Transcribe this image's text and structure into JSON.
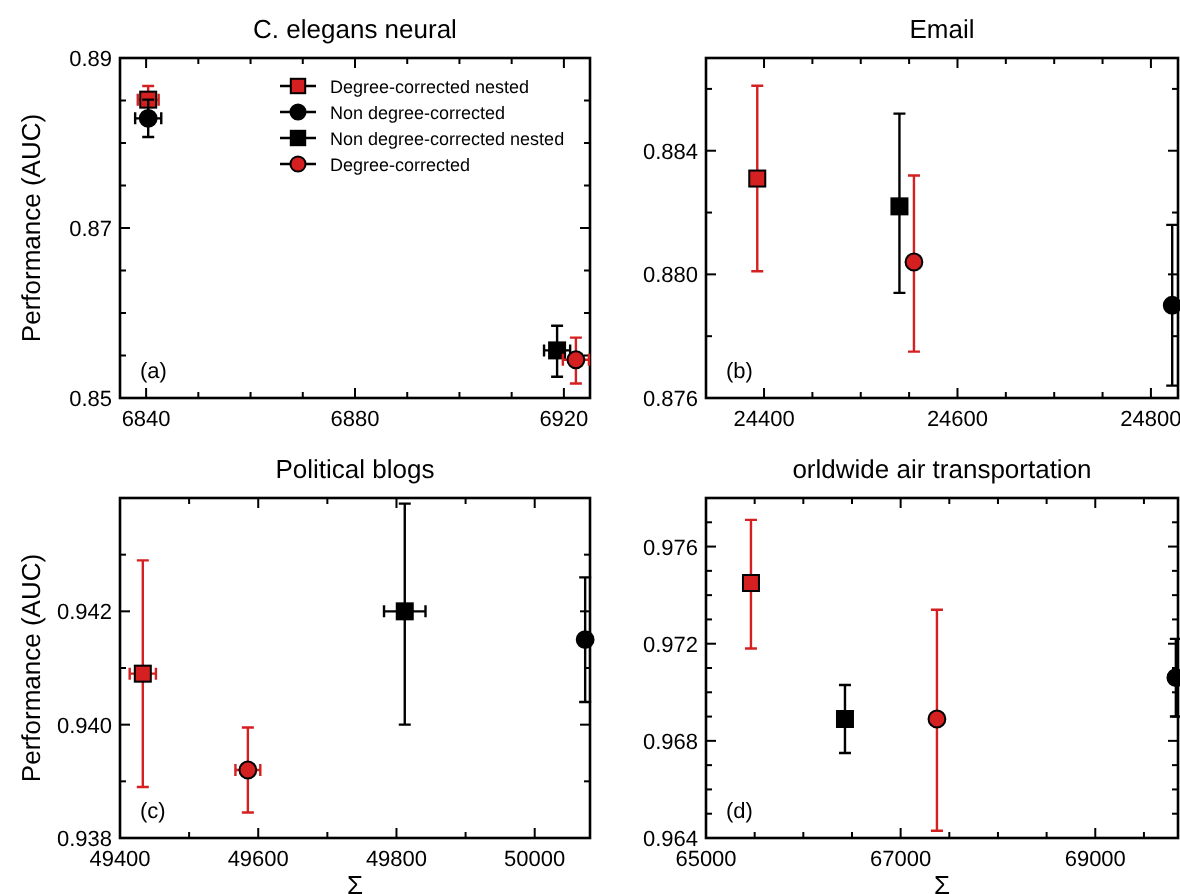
{
  "chart_data": [
    {
      "type": "scatter",
      "title": "C. elegans neural",
      "ylabel": "Performance (AUC)",
      "annotations": [
        "(a)"
      ],
      "legend": "top right",
      "xlim": [
        6835,
        6925
      ],
      "ylim": [
        0.85,
        0.89
      ],
      "xticks": [
        6840,
        {
          "value": 6850,
          "label": null
        },
        {
          "value": 6860,
          "label": null
        },
        {
          "value": 6870,
          "label": null
        },
        6880,
        {
          "value": 6890,
          "label": null
        },
        {
          "value": 6900,
          "label": null
        },
        {
          "value": 6910,
          "label": null
        },
        6920
      ],
      "yticks": [
        0.85,
        {
          "value": 0.855,
          "label": null
        },
        {
          "value": 0.86,
          "label": null
        },
        {
          "value": 0.865,
          "label": null
        },
        0.87,
        {
          "value": 0.875,
          "label": null
        },
        {
          "value": 0.88,
          "label": null
        },
        {
          "value": 0.885,
          "label": null
        },
        0.89
      ],
      "series": [
        {
          "name": "Degree-corrected nested",
          "color": "#d42020",
          "marker": "square",
          "x": [
            6840.4
          ],
          "values": [
            0.8851
          ],
          "errors": [
            [
              0.8835,
              0.8867
            ]
          ],
          "xerrors": [
            2
          ]
        },
        {
          "name": "Non degree-corrected",
          "color": "#000000",
          "marker": "circle",
          "x": [
            6840.4
          ],
          "values": [
            0.8829
          ],
          "errors": [
            [
              0.8807,
              0.8851
            ]
          ],
          "xerrors": [
            2.5
          ]
        },
        {
          "name": "Non degree-corrected nested",
          "color": "#000000",
          "marker": "square",
          "x": [
            6918.7
          ],
          "values": [
            0.8556
          ],
          "errors": [
            [
              0.8525,
              0.8585
            ]
          ],
          "xerrors": [
            2.5
          ]
        },
        {
          "name": "Degree-corrected",
          "color": "#d42020",
          "marker": "circle",
          "x": [
            6922.3
          ],
          "values": [
            0.8545
          ],
          "errors": [
            [
              0.8517,
              0.8571
            ]
          ],
          "xerrors": [
            2.5
          ]
        }
      ]
    },
    {
      "type": "scatter",
      "title": "Email",
      "annotations": [
        "(b)"
      ],
      "xlim": [
        24340,
        24828
      ],
      "ylim": [
        0.876,
        0.887
      ],
      "xticks": [
        24400,
        {
          "value": 24450,
          "label": null
        },
        {
          "value": 24500,
          "label": null
        },
        {
          "value": 24550,
          "label": null
        },
        24600,
        {
          "value": 24650,
          "label": null
        },
        {
          "value": 24700,
          "label": null
        },
        {
          "value": 24750,
          "label": null
        },
        24800
      ],
      "yticks": [
        0.876,
        {
          "value": 0.878,
          "label": null
        },
        {
          "value": 0.88,
          "label": "0.880"
        },
        {
          "value": 0.882,
          "label": null
        },
        0.884,
        {
          "value": 0.886,
          "label": null
        }
      ],
      "series": [
        {
          "color": "#d42020",
          "marker": "square",
          "x": [
            24393
          ],
          "values": [
            0.8831
          ],
          "errors": [
            [
              0.8801,
              0.8861
            ]
          ]
        },
        {
          "color": "#000000",
          "marker": "square",
          "x": [
            24540
          ],
          "values": [
            0.8822
          ],
          "errors": [
            [
              0.8794,
              0.8852
            ]
          ]
        },
        {
          "color": "#d42020",
          "marker": "circle",
          "x": [
            24555
          ],
          "values": [
            0.8804
          ],
          "errors": [
            [
              0.8775,
              0.8832
            ]
          ]
        },
        {
          "color": "#000000",
          "marker": "circle",
          "x": [
            24822
          ],
          "values": [
            0.879
          ],
          "errors": [
            [
              0.8764,
              0.8816
            ]
          ]
        }
      ]
    },
    {
      "type": "scatter",
      "title": "Political blogs",
      "xlabel": "Σ",
      "ylabel": "Performance (AUC)",
      "annotations": [
        "(c)"
      ],
      "xlim": [
        49400,
        50080
      ],
      "ylim": [
        0.938,
        0.944
      ],
      "xticks": [
        49400,
        {
          "value": 49500,
          "label": null
        },
        49600,
        {
          "value": 49700,
          "label": null
        },
        49800,
        {
          "value": 49900,
          "label": null
        },
        50000
      ],
      "yticks": [
        0.938,
        {
          "value": 0.939,
          "label": null
        },
        {
          "value": 0.94,
          "label": "0.940"
        },
        {
          "value": 0.941,
          "label": null
        },
        0.942,
        {
          "value": 0.943,
          "label": null
        }
      ],
      "series": [
        {
          "color": "#d42020",
          "marker": "square",
          "x": [
            49433
          ],
          "values": [
            0.9409
          ],
          "errors": [
            [
              0.9389,
              0.9429
            ]
          ],
          "xerrors": [
            19
          ]
        },
        {
          "color": "#d42020",
          "marker": "circle",
          "x": [
            49585
          ],
          "values": [
            0.9392
          ],
          "errors": [
            [
              0.93845,
              0.93995
            ]
          ],
          "xerrors": [
            18
          ]
        },
        {
          "color": "#000000",
          "marker": "square",
          "x": [
            49812
          ],
          "values": [
            0.942
          ],
          "errors": [
            [
              0.94,
              0.9439
            ]
          ],
          "xerrors": [
            30
          ]
        },
        {
          "color": "#000000",
          "marker": "circle",
          "x": [
            50073
          ],
          "values": [
            0.9415
          ],
          "errors": [
            [
              0.9404,
              0.9426
            ]
          ]
        }
      ]
    },
    {
      "type": "scatter",
      "title": "orldwide air transportation",
      "xlabel": "Σ",
      "annotations": [
        "(d)"
      ],
      "xlim": [
        65000,
        69850
      ],
      "ylim": [
        0.964,
        0.978
      ],
      "xticks": [
        65000,
        {
          "value": 65500,
          "label": null
        },
        {
          "value": 66000,
          "label": null
        },
        {
          "value": 66500,
          "label": null
        },
        67000,
        {
          "value": 67500,
          "label": null
        },
        {
          "value": 68000,
          "label": null
        },
        {
          "value": 68500,
          "label": null
        },
        69000,
        {
          "value": 69500,
          "label": null
        }
      ],
      "yticks": [
        0.964,
        {
          "value": 0.965,
          "label": null
        },
        {
          "value": 0.966,
          "label": null
        },
        {
          "value": 0.967,
          "label": null
        },
        0.968,
        {
          "value": 0.969,
          "label": null
        },
        {
          "value": 0.97,
          "label": null
        },
        {
          "value": 0.971,
          "label": null
        },
        0.972,
        {
          "value": 0.973,
          "label": null
        },
        {
          "value": 0.974,
          "label": null
        },
        {
          "value": 0.975,
          "label": null
        },
        0.976,
        {
          "value": 0.977,
          "label": null
        }
      ],
      "series": [
        {
          "color": "#d42020",
          "marker": "square",
          "x": [
            65462
          ],
          "values": [
            0.9745
          ],
          "errors": [
            [
              0.9718,
              0.9771
            ]
          ]
        },
        {
          "color": "#000000",
          "marker": "square",
          "x": [
            66428
          ],
          "values": [
            0.9689
          ],
          "errors": [
            [
              0.9675,
              0.9703
            ]
          ]
        },
        {
          "color": "#d42020",
          "marker": "circle",
          "x": [
            67373
          ],
          "values": [
            0.9689
          ],
          "errors": [
            [
              0.9643,
              0.9734
            ]
          ]
        },
        {
          "color": "#000000",
          "marker": "circle",
          "x": [
            69828
          ],
          "values": [
            0.9706
          ],
          "errors": [
            [
              0.969,
              0.9722
            ]
          ]
        }
      ]
    }
  ]
}
